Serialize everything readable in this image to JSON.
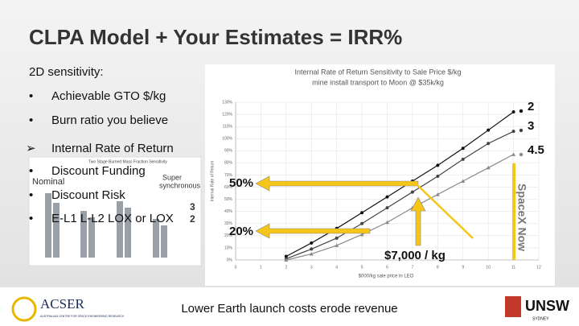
{
  "slide": {
    "title": "CLPA Model + Your Estimates = IRR%",
    "subtitle": "2D sensitivity:",
    "bullets": [
      "Achievable GTO $/kg",
      "Burn ratio you believe"
    ],
    "arrow_item": "Internal Rate of Return",
    "sub_bullets": [
      "Discount Funding",
      "Discount Risk",
      "E-L1 L-L2 LOX or LOX"
    ],
    "inset": {
      "title": "Two Stage Burned Mass Fraction Sensitivity",
      "label_a": "Nominal",
      "label_b": "Super",
      "label_c": "synchronous",
      "label_d": "3",
      "label_e": "2"
    },
    "callout_high": "50%",
    "callout_low": "20%",
    "callout_price": "$7,000 / kg",
    "side_label": "SpaceX Now",
    "caption": "Lower Earth launch costs erode revenue",
    "logo_left": "ACSER",
    "logo_left_sub": "AUSTRALIAN CENTRE FOR SPACE ENGINEERING RESEARCH",
    "logo_right": "UNSW",
    "logo_right_sub": "SYDNEY"
  },
  "chart_data": {
    "type": "line",
    "title": "Internal Rate of Return Sensitivity to Sale Price $/kg",
    "subtitle": "mine install transport to Moon @ $35k/kg",
    "x_label": "$000/kg sale price in LEO",
    "y_label": "Internal Rate of Return",
    "x": [
      2,
      3,
      4,
      5,
      6,
      7,
      8,
      9,
      10,
      11
    ],
    "series": [
      {
        "name": "2",
        "color": "#111111",
        "marker": "circle",
        "values": [
          3,
          14,
          26,
          39,
          52,
          65,
          78,
          92,
          107,
          122
        ]
      },
      {
        "name": "3",
        "color": "#444444",
        "marker": "circle",
        "values": [
          1,
          9,
          18,
          30,
          43,
          56,
          69,
          83,
          96,
          106
        ]
      },
      {
        "name": "4.5",
        "color": "#8a8a8a",
        "marker": "triangle",
        "values": [
          0,
          5,
          12,
          21,
          31,
          43,
          54,
          65,
          76,
          87
        ]
      }
    ],
    "xlim": [
      0,
      12
    ],
    "xticks": [
      0,
      1,
      2,
      3,
      4,
      5,
      6,
      7,
      8,
      9,
      10,
      11,
      12
    ],
    "ylim": [
      0,
      130
    ],
    "yticks": [
      {
        "value": 0,
        "label": "0%"
      },
      {
        "value": 10,
        "label": "10%"
      },
      {
        "value": 20,
        "label": "20%"
      },
      {
        "value": 30,
        "label": "30%"
      },
      {
        "value": 40,
        "label": "40%"
      },
      {
        "value": 50,
        "label": "50%"
      },
      {
        "value": 60,
        "label": "60%"
      },
      {
        "value": 70,
        "label": "70%"
      },
      {
        "value": 80,
        "label": "80%"
      },
      {
        "value": 90,
        "label": "90%"
      },
      {
        "value": 100,
        "label": "100%"
      },
      {
        "value": 110,
        "label": "110%"
      },
      {
        "value": 120,
        "label": "120%"
      },
      {
        "value": 130,
        "label": "130%"
      }
    ],
    "grid": true
  }
}
